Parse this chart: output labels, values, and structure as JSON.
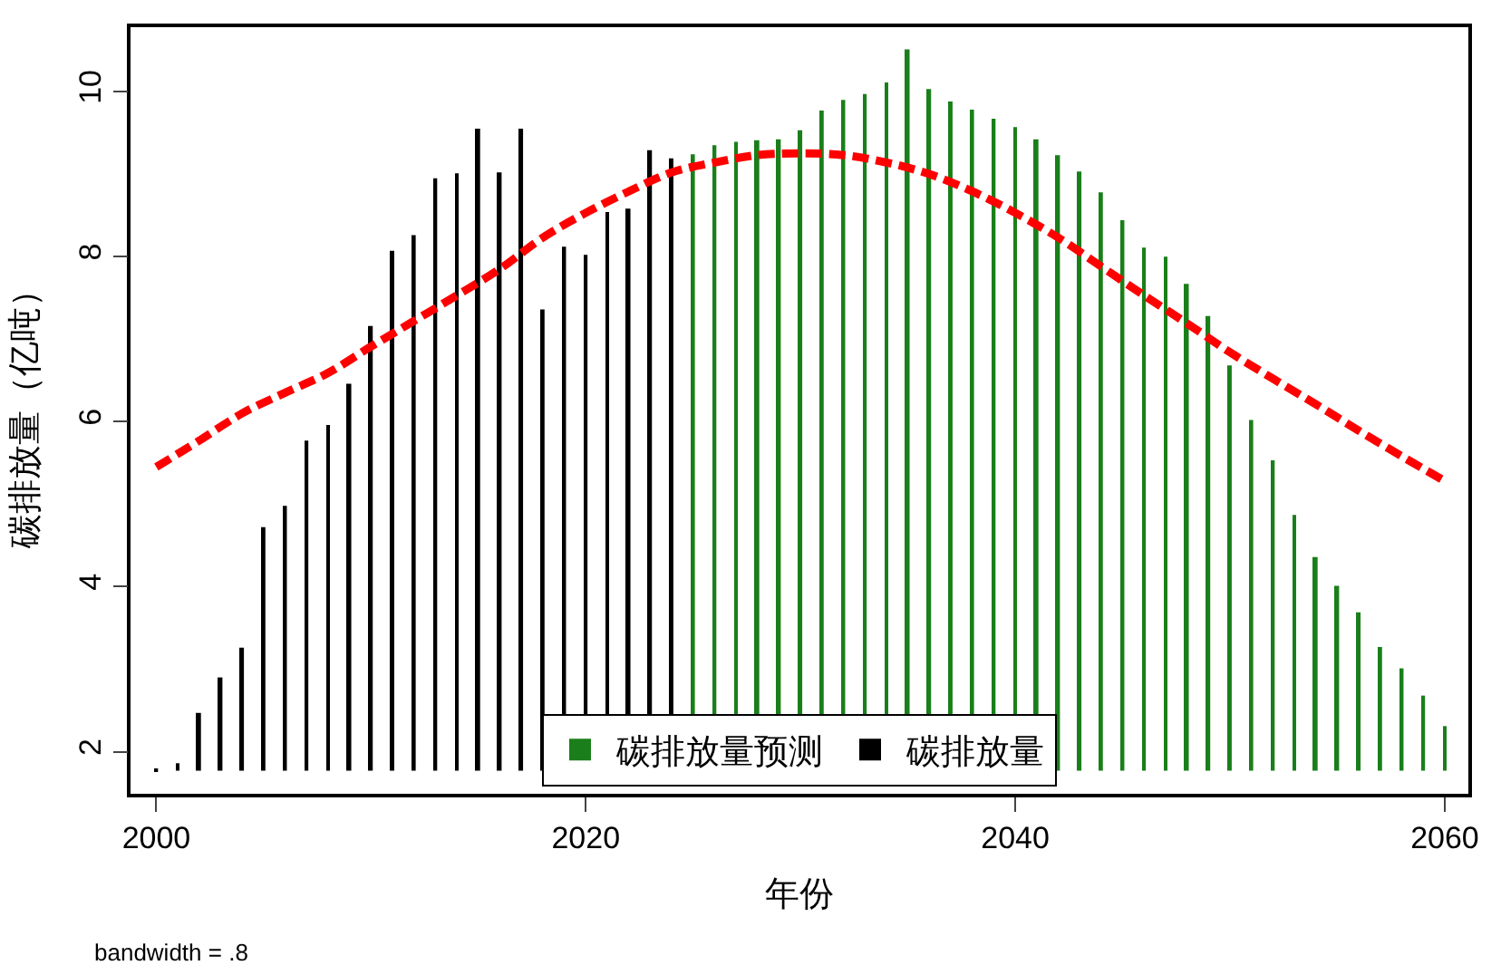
{
  "chart_data": {
    "type": "bar",
    "xlabel": "年份",
    "ylabel": "碳排放量（亿吨）",
    "xlim": [
      1998.8,
      2061.1
    ],
    "xticks": [
      2000,
      2020,
      2040,
      2060
    ],
    "ylim": [
      1.49,
      10.78
    ],
    "yticks": [
      2,
      4,
      6,
      8,
      10
    ],
    "legend": "bottom",
    "annotations": [
      "bandwidth = .8"
    ],
    "series": [
      {
        "name": "碳排放量预测",
        "color": "#1a7f1a",
        "x": [
          2025,
          2026,
          2027,
          2028,
          2029,
          2030,
          2031,
          2032,
          2033,
          2034,
          2035,
          2036,
          2037,
          2038,
          2039,
          2040,
          2041,
          2042,
          2043,
          2044,
          2045,
          2046,
          2047,
          2048,
          2049,
          2050,
          2051,
          2052,
          2053,
          2054,
          2055,
          2056,
          2057,
          2058,
          2059,
          2060
        ],
        "base": [
          1.77,
          1.77,
          1.77,
          1.77,
          1.77,
          1.77,
          1.77,
          1.77,
          1.77,
          1.77,
          1.77,
          1.77,
          1.77,
          1.77,
          1.77,
          1.77,
          1.77,
          1.77,
          1.77,
          1.77,
          1.77,
          1.77,
          1.77,
          1.77,
          1.77,
          1.77,
          1.77,
          1.77,
          1.77,
          1.77,
          1.77,
          1.77,
          1.77,
          1.77,
          1.77,
          1.77
        ],
        "values": [
          7.47,
          7.58,
          7.62,
          7.64,
          7.65,
          7.76,
          8.0,
          8.13,
          8.2,
          8.34,
          8.74,
          8.26,
          8.11,
          8.01,
          7.9,
          7.8,
          7.65,
          7.46,
          7.26,
          7.01,
          6.67,
          6.34,
          6.23,
          5.9,
          5.51,
          4.91,
          4.25,
          3.76,
          3.1,
          2.59,
          2.24,
          1.92,
          1.5,
          1.24,
          0.91,
          0.54
        ]
      },
      {
        "name": "碳排放量",
        "color": "#000000",
        "x": [
          2000,
          2001,
          2002,
          2003,
          2004,
          2005,
          2006,
          2007,
          2008,
          2009,
          2010,
          2011,
          2012,
          2013,
          2014,
          2015,
          2016,
          2017,
          2018,
          2019,
          2020,
          2021,
          2022,
          2023,
          2024
        ],
        "base": [
          1.77,
          1.77,
          1.77,
          1.77,
          1.77,
          1.77,
          1.77,
          1.77,
          1.77,
          1.77,
          1.77,
          1.77,
          1.77,
          1.77,
          1.77,
          1.77,
          1.77,
          1.77,
          1.77,
          1.77,
          1.77,
          1.77,
          1.77,
          1.77,
          1.77
        ],
        "values": [
          0.01,
          0.09,
          0.7,
          1.13,
          1.49,
          2.95,
          3.21,
          4.0,
          4.19,
          4.69,
          5.39,
          6.3,
          6.49,
          7.18,
          7.24,
          7.78,
          7.25,
          7.78,
          5.59,
          6.35,
          6.25,
          6.77,
          6.81,
          7.52,
          7.42
        ]
      },
      {
        "type": "line",
        "color": "#ff0000",
        "line_style": "dashed",
        "marker": "none",
        "x": [
          2000,
          2002,
          2004,
          2006,
          2008,
          2010,
          2012,
          2014,
          2016,
          2018,
          2020,
          2022,
          2024,
          2026,
          2028,
          2030,
          2032,
          2034,
          2036,
          2038,
          2040,
          2042,
          2044,
          2046,
          2048,
          2050,
          2052,
          2054,
          2056,
          2058,
          2060
        ],
        "values": [
          5.45,
          5.77,
          6.1,
          6.35,
          6.59,
          6.91,
          7.22,
          7.53,
          7.85,
          8.23,
          8.53,
          8.79,
          9.02,
          9.14,
          9.23,
          9.25,
          9.23,
          9.14,
          9.0,
          8.79,
          8.53,
          8.23,
          7.88,
          7.53,
          7.19,
          6.84,
          6.52,
          6.21,
          5.89,
          5.58,
          5.28
        ]
      }
    ]
  }
}
